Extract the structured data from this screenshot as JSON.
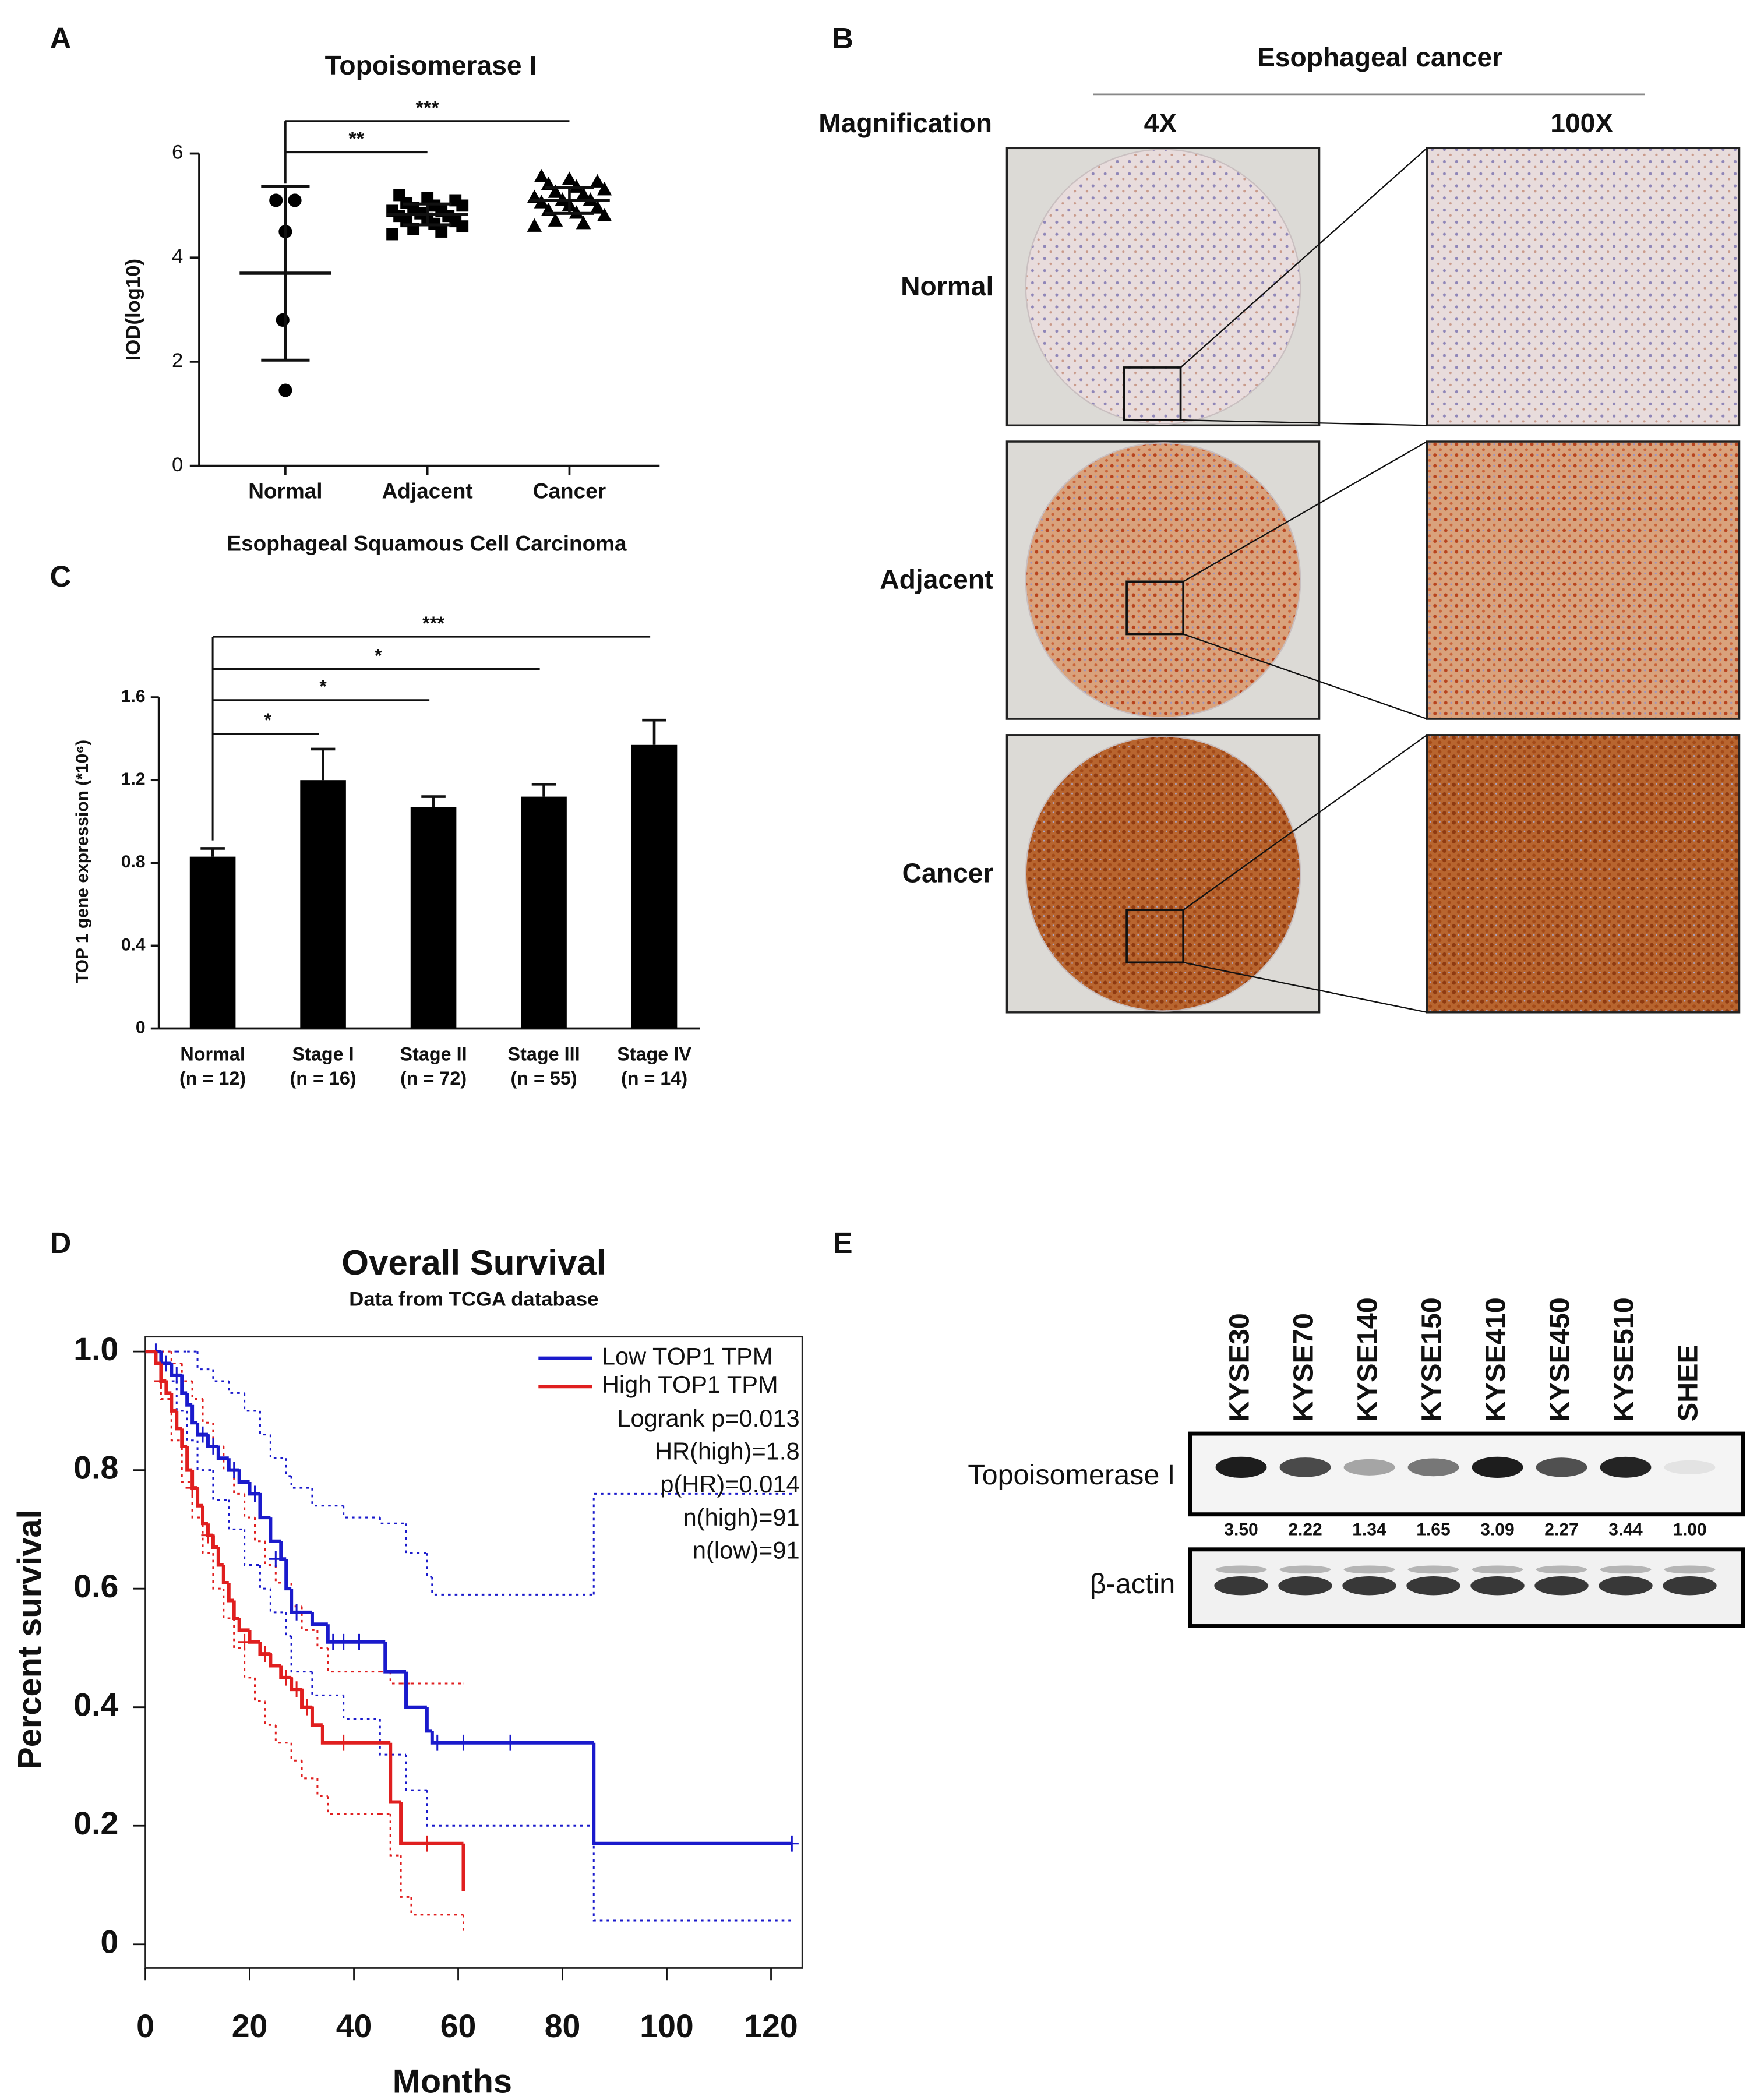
{
  "figure": {
    "panel_labels": [
      "A",
      "B",
      "C",
      "D",
      "E"
    ],
    "ihc": {
      "header": "Esophageal cancer",
      "magnification_label": "Magnification",
      "columns": [
        "4X",
        "100X"
      ],
      "rows": [
        "Normal",
        "Adjacent",
        "Cancer"
      ]
    },
    "western": {
      "lanes": [
        "KYSE30",
        "KYSE70",
        "KYSE140",
        "KYSE150",
        "KYSE410",
        "KYSE450",
        "KYSE510",
        "SHEE"
      ],
      "rows": [
        {
          "label": "Topoisomerase I",
          "quantification": [
            "3.50",
            "2.22",
            "1.34",
            "1.65",
            "3.09",
            "2.27",
            "3.44",
            "1.00"
          ]
        },
        {
          "label": "β-actin"
        }
      ]
    }
  },
  "chart_data": [
    {
      "type": "dotplot",
      "title": "Topoisomerase I",
      "x_label": "Esophageal Squamous Cell Carcinoma",
      "y_label": "IOD(log10)",
      "categories": [
        "Normal",
        "Adjacent",
        "Cancer"
      ],
      "points": [
        [
          5.1,
          5.1,
          4.5,
          2.8,
          1.45
        ],
        [
          4.45,
          4.5,
          4.55,
          4.6,
          4.65,
          4.7,
          4.7,
          4.75,
          4.8,
          4.8,
          4.85,
          4.9,
          4.9,
          4.95,
          5.0,
          5.0,
          5.05,
          5.1,
          5.15,
          5.2
        ],
        [
          4.6,
          4.65,
          4.7,
          4.8,
          4.85,
          4.9,
          4.95,
          5.0,
          5.05,
          5.1,
          5.1,
          5.15,
          5.2,
          5.25,
          5.3,
          5.35,
          5.4,
          5.45,
          5.5,
          5.55
        ]
      ],
      "mean": [
        3.7,
        4.83,
        5.1
      ],
      "sd": [
        1.67,
        0.2,
        0.25
      ],
      "markers": [
        "circle",
        "square",
        "triangle"
      ],
      "color": "#000000",
      "ylim": [
        0,
        6
      ],
      "yticks": [
        0,
        2,
        4,
        6
      ],
      "significance": [
        "**",
        "***"
      ]
    },
    {
      "type": "bar",
      "y_label": "TOP 1 gene expression (*10⁶)",
      "categories": [
        "Normal",
        "Stage I",
        "Stage II",
        "Stage III",
        "Stage IV"
      ],
      "n_labels": [
        "(n = 12)",
        "(n = 16)",
        "(n = 72)",
        "(n = 55)",
        "(n = 14)"
      ],
      "values": [
        0.83,
        1.2,
        1.07,
        1.12,
        1.37
      ],
      "errors": [
        0.04,
        0.15,
        0.05,
        0.06,
        0.12
      ],
      "color": "#000000",
      "ylim": [
        0,
        1.6
      ],
      "yticks": [
        0,
        0.4,
        0.8,
        1.2,
        1.6
      ],
      "significance": [
        "*",
        "*",
        "*",
        "***"
      ]
    },
    {
      "type": "survival",
      "title": "Overall Survival",
      "subtitle": "Data from TCGA database",
      "x_label": "Months",
      "y_label": "Percent survival",
      "xlim": [
        0,
        126
      ],
      "ylim": [
        -0.04,
        1.025
      ],
      "xticks": [
        0,
        20,
        40,
        60,
        80,
        100,
        120
      ],
      "yticks": [
        0,
        0.2,
        0.4,
        0.6,
        0.8,
        {
          "value": 1,
          "label": "1.0"
        }
      ],
      "legend": "upper right",
      "series": [
        {
          "name": "Low TOP1 TPM",
          "color": "#1a1acc",
          "x": [
            0,
            3,
            5,
            7,
            8,
            9,
            10,
            12,
            14,
            16,
            18,
            20,
            22,
            24,
            26,
            27,
            28,
            32,
            35,
            46,
            50,
            54,
            55,
            86,
            124
          ],
          "values": [
            1,
            0.98,
            0.96,
            0.93,
            0.91,
            0.88,
            0.86,
            0.84,
            0.82,
            0.8,
            0.78,
            0.76,
            0.72,
            0.68,
            0.65,
            0.6,
            0.56,
            0.54,
            0.51,
            0.46,
            0.4,
            0.36,
            0.34,
            0.17,
            0.17
          ],
          "ci_x": [
            0,
            3,
            6,
            8,
            10,
            13,
            16,
            19,
            22,
            24,
            27,
            28,
            32,
            38,
            45,
            50,
            54,
            55,
            86,
            124
          ],
          "ci_upper": [
            1,
            1,
            1,
            1,
            0.97,
            0.95,
            0.93,
            0.9,
            0.86,
            0.82,
            0.79,
            0.77,
            0.74,
            0.72,
            0.71,
            0.66,
            0.62,
            0.59,
            0.76,
            0.76
          ],
          "ci_lower": [
            1,
            0.95,
            0.9,
            0.85,
            0.8,
            0.75,
            0.7,
            0.64,
            0.6,
            0.56,
            0.52,
            0.46,
            0.42,
            0.38,
            0.32,
            0.26,
            0.2,
            0.2,
            0.04,
            0.04
          ],
          "censored_x": [
            2,
            4,
            6,
            11,
            13,
            17,
            21,
            25,
            29,
            36,
            38,
            41,
            56,
            61,
            70,
            124
          ],
          "censored_values": [
            1,
            0.98,
            0.96,
            0.86,
            0.84,
            0.8,
            0.76,
            0.65,
            0.56,
            0.51,
            0.51,
            0.51,
            0.34,
            0.34,
            0.34,
            0.17
          ]
        },
        {
          "name": "High TOP1 TPM",
          "color": "#e01f1f",
          "x": [
            0,
            2,
            3,
            4,
            5,
            6,
            7,
            8,
            9,
            10,
            11,
            12,
            13,
            14,
            15,
            16,
            17,
            18,
            20,
            22,
            24,
            26,
            28,
            30,
            32,
            34,
            47,
            49,
            61
          ],
          "values": [
            1,
            0.98,
            0.95,
            0.93,
            0.9,
            0.87,
            0.84,
            0.8,
            0.77,
            0.74,
            0.71,
            0.69,
            0.67,
            0.64,
            0.61,
            0.58,
            0.55,
            0.53,
            0.51,
            0.49,
            0.47,
            0.45,
            0.43,
            0.4,
            0.37,
            0.34,
            0.24,
            0.17,
            0.09
          ],
          "ci_x": [
            0,
            3,
            5,
            7,
            9,
            11,
            13,
            15,
            17,
            19,
            21,
            23,
            25,
            28,
            30,
            33,
            35,
            45,
            47,
            49,
            51,
            61
          ],
          "ci_upper": [
            1,
            1,
            0.98,
            0.95,
            0.92,
            0.88,
            0.84,
            0.8,
            0.76,
            0.72,
            0.68,
            0.64,
            0.61,
            0.57,
            0.53,
            0.5,
            0.46,
            0.46,
            0.44,
            0.44,
            0.44,
            0.44
          ],
          "ci_lower": [
            1,
            0.92,
            0.85,
            0.78,
            0.72,
            0.66,
            0.6,
            0.55,
            0.5,
            0.45,
            0.41,
            0.37,
            0.34,
            0.31,
            0.28,
            0.25,
            0.22,
            0.22,
            0.15,
            0.08,
            0.05,
            0.02
          ],
          "censored_x": [
            3,
            9,
            12,
            19,
            23,
            27,
            29,
            31,
            38,
            54
          ],
          "censored_values": [
            0.95,
            0.77,
            0.69,
            0.51,
            0.49,
            0.45,
            0.43,
            0.4,
            0.34,
            0.17
          ]
        }
      ],
      "annotations": [
        "Logrank p=0.013",
        "HR(high)=1.8",
        "p(HR)=0.014",
        "n(high)=91",
        "n(low)=91"
      ]
    }
  ]
}
